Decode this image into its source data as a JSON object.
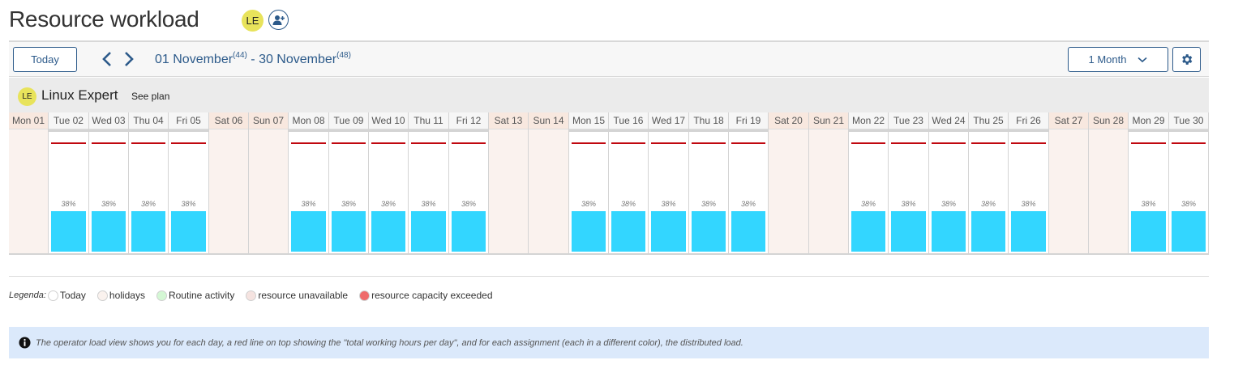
{
  "header": {
    "title": "Resource workload",
    "user_initials": "LE"
  },
  "toolbar": {
    "today_label": "Today",
    "range_start": "01 November",
    "range_start_week": "(44)",
    "range_sep": " - ",
    "range_end": "30 November",
    "range_end_week": "(48)",
    "period_label": "1 Month"
  },
  "resource": {
    "initials": "LE",
    "name": "Linux Expert",
    "see_plan": "See plan"
  },
  "colors": {
    "capacity_line": "#c0070f",
    "assignment": "#33d6ff",
    "holiday": "#faf2ee",
    "accent": "#2c5a8a"
  },
  "days": [
    {
      "label": "Mon 01",
      "type": "holiday",
      "load": null
    },
    {
      "label": "Tue 02",
      "type": "work",
      "load": "38%"
    },
    {
      "label": "Wed 03",
      "type": "work",
      "load": "38%"
    },
    {
      "label": "Thu 04",
      "type": "work",
      "load": "38%"
    },
    {
      "label": "Fri 05",
      "type": "work",
      "load": "38%"
    },
    {
      "label": "Sat 06",
      "type": "holiday",
      "load": null
    },
    {
      "label": "Sun 07",
      "type": "holiday",
      "load": null
    },
    {
      "label": "Mon 08",
      "type": "work",
      "load": "38%"
    },
    {
      "label": "Tue 09",
      "type": "work",
      "load": "38%"
    },
    {
      "label": "Wed 10",
      "type": "work",
      "load": "38%"
    },
    {
      "label": "Thu 11",
      "type": "work",
      "load": "38%"
    },
    {
      "label": "Fri 12",
      "type": "work",
      "load": "38%"
    },
    {
      "label": "Sat 13",
      "type": "holiday",
      "load": null
    },
    {
      "label": "Sun 14",
      "type": "holiday",
      "load": null
    },
    {
      "label": "Mon 15",
      "type": "work",
      "load": "38%"
    },
    {
      "label": "Tue 16",
      "type": "work",
      "load": "38%"
    },
    {
      "label": "Wed 17",
      "type": "work",
      "load": "38%"
    },
    {
      "label": "Thu 18",
      "type": "work",
      "load": "38%"
    },
    {
      "label": "Fri 19",
      "type": "work",
      "load": "38%"
    },
    {
      "label": "Sat 20",
      "type": "holiday",
      "load": null
    },
    {
      "label": "Sun 21",
      "type": "holiday",
      "load": null
    },
    {
      "label": "Mon 22",
      "type": "work",
      "load": "38%"
    },
    {
      "label": "Tue 23",
      "type": "work",
      "load": "38%"
    },
    {
      "label": "Wed 24",
      "type": "work",
      "load": "38%"
    },
    {
      "label": "Thu 25",
      "type": "work",
      "load": "38%"
    },
    {
      "label": "Fri 26",
      "type": "work",
      "load": "38%"
    },
    {
      "label": "Sat 27",
      "type": "holiday",
      "load": null
    },
    {
      "label": "Sun 28",
      "type": "holiday",
      "load": null
    },
    {
      "label": "Mon 29",
      "type": "work",
      "load": "38%"
    },
    {
      "label": "Tue 30",
      "type": "work",
      "load": "38%"
    }
  ],
  "legend": {
    "label": "Legenda:",
    "items": [
      {
        "label": "Today",
        "color": "#ffffff"
      },
      {
        "label": "holidays",
        "color": "#faf2ee"
      },
      {
        "label": "Routine activity",
        "color": "#d4f7d4"
      },
      {
        "label": "resource unavailable",
        "color": "#f5e3e0"
      },
      {
        "label": "resource capacity exceeded",
        "color": "#ef6b6b"
      }
    ]
  },
  "info": {
    "text": "The operator load view shows you for each day, a red line on top showing the \"total working hours per day\", and for each assignment (each in a different color), the distributed load."
  }
}
